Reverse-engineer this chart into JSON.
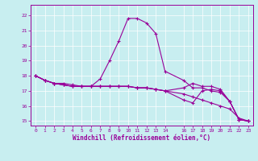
{
  "xlabel": "Windchill (Refroidissement éolien,°C)",
  "background_color": "#c8eef0",
  "grid_color": "#ffffff",
  "line_color": "#990099",
  "xlim": [
    -0.5,
    23.5
  ],
  "ylim": [
    14.7,
    22.7
  ],
  "xticks": [
    0,
    1,
    2,
    3,
    4,
    5,
    6,
    7,
    8,
    9,
    10,
    11,
    12,
    13,
    14,
    16,
    17,
    18,
    19,
    20,
    21,
    22,
    23
  ],
  "yticks": [
    15,
    16,
    17,
    18,
    19,
    20,
    21,
    22
  ],
  "series": [
    {
      "x": [
        0,
        1,
        2,
        3,
        4,
        5,
        6,
        7,
        8,
        9,
        10,
        11,
        12,
        13,
        14,
        16,
        17,
        18,
        19,
        20,
        21,
        22,
        23
      ],
      "y": [
        18.0,
        17.7,
        17.5,
        17.5,
        17.4,
        17.3,
        17.3,
        17.8,
        19.0,
        20.3,
        21.8,
        21.8,
        21.5,
        20.8,
        18.3,
        17.7,
        17.2,
        17.2,
        17.0,
        16.9,
        16.3,
        15.1,
        15.0
      ]
    },
    {
      "x": [
        0,
        1,
        2,
        3,
        4,
        5,
        6,
        7,
        8,
        9,
        10,
        11,
        12,
        13,
        14,
        16,
        17,
        18,
        19,
        20,
        21,
        22,
        23
      ],
      "y": [
        18.0,
        17.7,
        17.5,
        17.4,
        17.3,
        17.3,
        17.3,
        17.3,
        17.3,
        17.3,
        17.3,
        17.2,
        17.2,
        17.1,
        17.0,
        16.8,
        16.6,
        16.4,
        16.2,
        16.0,
        15.8,
        15.2,
        15.0
      ]
    },
    {
      "x": [
        0,
        1,
        2,
        3,
        4,
        5,
        6,
        7,
        8,
        9,
        10,
        11,
        12,
        13,
        14,
        16,
        17,
        18,
        19,
        20,
        21,
        22,
        23
      ],
      "y": [
        18.0,
        17.7,
        17.5,
        17.4,
        17.3,
        17.3,
        17.3,
        17.3,
        17.3,
        17.3,
        17.3,
        17.2,
        17.2,
        17.1,
        17.0,
        16.4,
        16.2,
        17.0,
        17.1,
        17.0,
        16.3,
        15.1,
        15.0
      ]
    },
    {
      "x": [
        0,
        1,
        2,
        3,
        4,
        5,
        6,
        7,
        8,
        9,
        10,
        11,
        12,
        13,
        14,
        16,
        17,
        18,
        19,
        20,
        21,
        22,
        23
      ],
      "y": [
        18.0,
        17.7,
        17.5,
        17.4,
        17.3,
        17.3,
        17.3,
        17.3,
        17.3,
        17.3,
        17.3,
        17.2,
        17.2,
        17.1,
        17.0,
        17.2,
        17.5,
        17.3,
        17.3,
        17.1,
        16.3,
        15.1,
        15.0
      ]
    }
  ]
}
